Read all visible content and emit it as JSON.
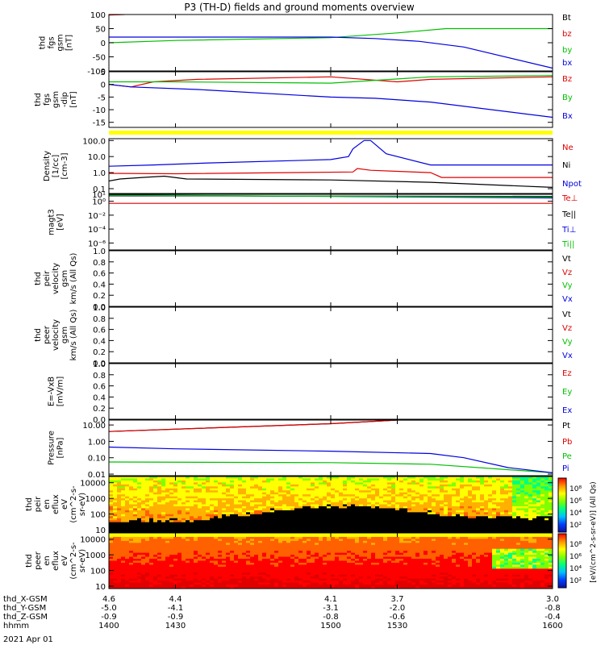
{
  "title": "P3 (TH-D) fields and ground moments overview",
  "date_label": "2021 Apr 01",
  "colors": {
    "black": "#000000",
    "red": "#e00000",
    "green": "#00c000",
    "blue": "#0000e0",
    "yellow": "#ffff00"
  },
  "chart_data": [
    {
      "type": "line",
      "ylabel": [
        "thd",
        "fgs",
        "gsm",
        "[nT]"
      ],
      "ylim": [
        -100,
        100
      ],
      "yticks": [
        100,
        50,
        0,
        -50,
        -100
      ],
      "series": [
        {
          "name": "Bt",
          "color": "black",
          "x": [
            1400,
            1405
          ],
          "y": [
            100,
            100
          ]
        },
        {
          "name": "bz",
          "color": "red",
          "x": [
            1400,
            1407
          ],
          "y": [
            98,
            100
          ]
        },
        {
          "name": "by",
          "color": "green",
          "x": [
            1400,
            1430,
            1500,
            1530,
            1552,
            1600
          ],
          "y": [
            0,
            8,
            18,
            35,
            50,
            50
          ]
        },
        {
          "name": "bx",
          "color": "blue",
          "x": [
            1400,
            1430,
            1500,
            1520,
            1540,
            1560,
            1600
          ],
          "y": [
            20,
            20,
            20,
            15,
            5,
            -15,
            -90
          ]
        }
      ]
    },
    {
      "type": "line",
      "ylabel": [
        "thd",
        "fgs",
        "gsm",
        "-dip",
        "[nT]"
      ],
      "ylim": [
        -17,
        5
      ],
      "yticks": [
        5,
        0,
        -5,
        -10,
        -15
      ],
      "series": [
        {
          "name": "Bz",
          "color": "red",
          "x": [
            1400,
            1410,
            1420,
            1440,
            1500,
            1530,
            1545,
            1600
          ],
          "y": [
            0,
            -1,
            1,
            2,
            3,
            1,
            2,
            3
          ]
        },
        {
          "name": "By",
          "color": "green",
          "x": [
            1400,
            1430,
            1500,
            1545,
            1600
          ],
          "y": [
            1,
            1,
            0.5,
            3,
            3.5
          ]
        },
        {
          "name": "Bx",
          "color": "blue",
          "x": [
            1400,
            1410,
            1440,
            1500,
            1520,
            1545,
            1600
          ],
          "y": [
            0,
            -1,
            -2,
            -5,
            -5.5,
            -7,
            -13
          ]
        }
      ]
    },
    {
      "type": "line",
      "ylabel": [
        "Density",
        "[1/cc]",
        "[cm-3]"
      ],
      "scale": "log",
      "ylim": [
        0.05,
        130
      ],
      "yticks": [
        "100.0",
        "10.0",
        "1.0",
        "0.1"
      ],
      "ytick_values": [
        100,
        10,
        1,
        0.1
      ],
      "series": [
        {
          "name": "Ne",
          "color": "red",
          "x": [
            1400,
            1430,
            1510,
            1512,
            1518,
            1530,
            1545,
            1550,
            1600
          ],
          "y": [
            0.9,
            0.85,
            1.1,
            1.8,
            1.4,
            1.2,
            1.0,
            0.5,
            0.5
          ]
        },
        {
          "name": "Ni",
          "color": "black",
          "x": [
            1400,
            1405,
            1415,
            1425,
            1435,
            1500,
            1545,
            1600
          ],
          "y": [
            0.3,
            0.4,
            0.5,
            0.6,
            0.4,
            0.35,
            0.25,
            0.12
          ]
        },
        {
          "name": "Npot",
          "color": "blue",
          "x": [
            1400,
            1420,
            1445,
            1500,
            1508,
            1510,
            1515,
            1518,
            1525,
            1545,
            1600
          ],
          "y": [
            2.5,
            3.0,
            4.0,
            6.5,
            10,
            30,
            100,
            100,
            15,
            3.0,
            3.0
          ]
        }
      ]
    },
    {
      "type": "line",
      "ylabel": [
        "magt3",
        "[eV]"
      ],
      "scale": "log",
      "ylim": [
        1e-07,
        10.0
      ],
      "yticks": [
        "10¹",
        "10⁰",
        "10⁻²",
        "10⁻⁴",
        "10⁻⁶"
      ],
      "ytick_values": [
        10,
        1,
        0.01,
        0.0001,
        1e-06
      ],
      "series": [
        {
          "name": "Te⊥",
          "color": "red",
          "x": [
            1400,
            1600
          ],
          "y": [
            0.5,
            0.5
          ]
        },
        {
          "name": "Te||",
          "color": "black",
          "x": [
            1400,
            1600
          ],
          "y": [
            6,
            5
          ]
        },
        {
          "name": "Ti⊥",
          "color": "blue",
          "x": [
            1400,
            1600
          ],
          "y": [
            8,
            3
          ]
        },
        {
          "name": "Ti||",
          "color": "green",
          "x": [
            1400,
            1600
          ],
          "y": [
            7,
            4
          ]
        }
      ]
    },
    {
      "type": "line",
      "ylabel": [
        "thd",
        "peir",
        "velocity",
        "gsm",
        "km/s (All Qs)"
      ],
      "ylim": [
        0,
        1
      ],
      "yticks": [
        "1.0",
        "0.8",
        "0.6",
        "0.4",
        "0.2",
        "0.0"
      ],
      "ytick_values": [
        1.0,
        0.8,
        0.6,
        0.4,
        0.2,
        0.0
      ],
      "series": [
        {
          "name": "Vt",
          "color": "black",
          "x": [],
          "y": []
        },
        {
          "name": "Vz",
          "color": "red",
          "x": [],
          "y": []
        },
        {
          "name": "Vy",
          "color": "green",
          "x": [],
          "y": []
        },
        {
          "name": "Vx",
          "color": "blue",
          "x": [],
          "y": []
        }
      ]
    },
    {
      "type": "line",
      "ylabel": [
        "thd",
        "peer",
        "velocity",
        "gsm",
        "km/s (All Qs)"
      ],
      "ylim": [
        0,
        1
      ],
      "yticks": [
        "1.0",
        "0.8",
        "0.6",
        "0.4",
        "0.2",
        "0.0"
      ],
      "ytick_values": [
        1.0,
        0.8,
        0.6,
        0.4,
        0.2,
        0.0
      ],
      "series": [
        {
          "name": "Vt",
          "color": "black",
          "x": [],
          "y": []
        },
        {
          "name": "Vz",
          "color": "red",
          "x": [],
          "y": []
        },
        {
          "name": "Vy",
          "color": "green",
          "x": [],
          "y": []
        },
        {
          "name": "Vx",
          "color": "blue",
          "x": [],
          "y": []
        }
      ]
    },
    {
      "type": "line",
      "ylabel": [
        "E=-VxB",
        "[mV/m]"
      ],
      "ylim": [
        0,
        1
      ],
      "yticks": [
        "1.0",
        "0.8",
        "0.6",
        "0.4",
        "0.2",
        "0.0"
      ],
      "ytick_values": [
        1.0,
        0.8,
        0.6,
        0.4,
        0.2,
        0.0
      ],
      "series": [
        {
          "name": "Ez",
          "color": "red",
          "x": [],
          "y": []
        },
        {
          "name": "Ey",
          "color": "green",
          "x": [],
          "y": []
        },
        {
          "name": "Ex",
          "color": "blue",
          "x": [],
          "y": []
        }
      ]
    },
    {
      "type": "line",
      "ylabel": [
        "Pressure",
        "[nPa]"
      ],
      "scale": "log",
      "ylim": [
        0.008,
        20
      ],
      "yticks": [
        "10.00",
        "1.00",
        "0.10",
        "0.01"
      ],
      "ytick_values": [
        10,
        1,
        0.1,
        0.01
      ],
      "series": [
        {
          "name": "Pt",
          "color": "black",
          "x": [
            1400,
            1500,
            1530,
            1600
          ],
          "y": [
            4,
            12,
            20,
            20
          ]
        },
        {
          "name": "Pb",
          "color": "red",
          "x": [
            1400,
            1500,
            1530
          ],
          "y": [
            4,
            12,
            20
          ]
        },
        {
          "name": "Pe",
          "color": "green",
          "x": [
            1400,
            1500,
            1545,
            1600
          ],
          "y": [
            0.055,
            0.05,
            0.04,
            0.012
          ]
        },
        {
          "name": "Pi",
          "color": "blue",
          "x": [
            1400,
            1430,
            1500,
            1545,
            1560,
            1580,
            1600
          ],
          "y": [
            0.45,
            0.35,
            0.25,
            0.18,
            0.1,
            0.025,
            0.012
          ]
        }
      ]
    },
    {
      "type": "heatmap",
      "ylabel": [
        "thd",
        "peir",
        "en",
        "eflux",
        "eV",
        "(cm^2-s-",
        "sr-eV)"
      ],
      "scale": "log",
      "ylim": [
        7,
        25000
      ],
      "yticks": [
        "10000",
        "1000",
        "100",
        "10"
      ],
      "ytick_values": [
        10000,
        1000,
        100,
        10
      ]
    },
    {
      "type": "heatmap",
      "ylabel": [
        "thd",
        "peer",
        "en",
        "eflux",
        "eV",
        "(cm^2-s-",
        "sr-eV)"
      ],
      "scale": "log",
      "ylim": [
        7,
        25000
      ],
      "yticks": [
        "10000",
        "1000",
        "100",
        "10"
      ],
      "ytick_values": [
        10000,
        1000,
        100,
        10
      ]
    }
  ],
  "colorbar": {
    "labels": [
      "10⁸",
      "10⁶",
      "10⁴",
      "10²"
    ],
    "title": "[eV/(cm^2-s-sr-eV)]",
    "title2": "[eV/(cm^2-s-sr-eV)]  (All Qs)"
  },
  "x_axis": {
    "ticks": [
      "1400",
      "1430",
      "1500",
      "1530",
      "1600"
    ],
    "tick_values": [
      1400,
      1430,
      1500,
      1530,
      1600
    ],
    "rows": [
      {
        "label": "thd_X-GSM",
        "values": [
          "4.6",
          "4.4",
          "4.1",
          "3.7",
          "3.0"
        ]
      },
      {
        "label": "thd_Y-GSM",
        "values": [
          "-5.0",
          "-4.1",
          "-3.1",
          "-2.0",
          "-0.8"
        ]
      },
      {
        "label": "thd_Z-GSM",
        "values": [
          "-0.9",
          "-0.9",
          "-0.8",
          "-0.6",
          "-0.4"
        ]
      },
      {
        "label": "hhmm",
        "values": [
          "1400",
          "1430",
          "1500",
          "1530",
          "1600"
        ]
      }
    ]
  }
}
